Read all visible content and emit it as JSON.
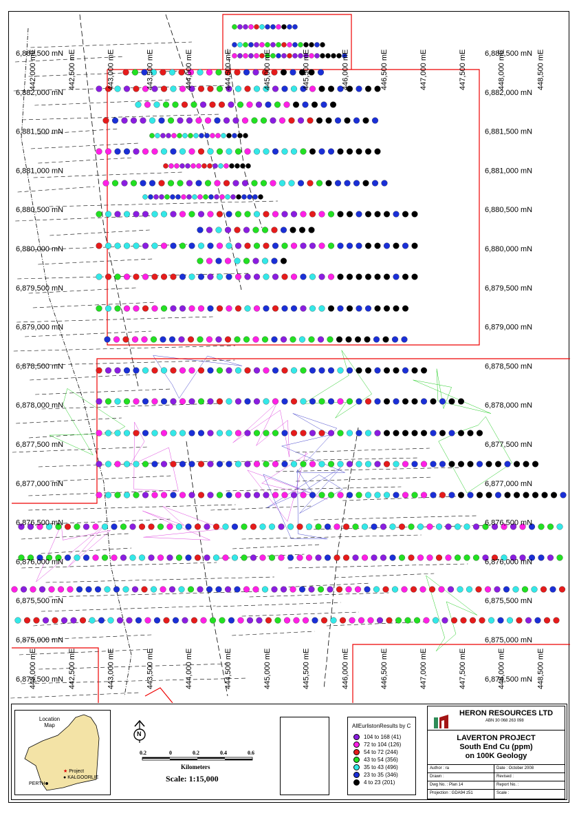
{
  "map": {
    "easting_labels_top": [
      "442,000 mE",
      "442,500 mE",
      "443,000 mE",
      "443,500 mE",
      "444,000 mE",
      "444,500 mE",
      "445,000 mE",
      "445,500 mE",
      "446,000 mE",
      "446,500 mE",
      "447,000 mE",
      "447,500 mE",
      "448,000 mE",
      "448,500 mE"
    ],
    "easting_labels_bottom": [
      "442,000 mE",
      "442,500 mE",
      "443,000 mE",
      "443,500 mE",
      "444,000 mE",
      "444,500 mE",
      "445,000 mE",
      "445,500 mE",
      "446,000 mE",
      "446,500 mE",
      "447,000 mE",
      "447,500 mE",
      "448,000 mE",
      "448,500 mE"
    ],
    "northing_labels_left": [
      "6,882,500 mN",
      "6,882,000 mN",
      "6,881,500 mN",
      "6,881,000 mN",
      "6,880,500 mN",
      "6,880,000 mN",
      "6,879,500 mN",
      "6,879,000 mN",
      "6,878,500 mN",
      "6,878,000 mN",
      "6,877,500 mN",
      "6,877,000 mN",
      "6,876,500 mN",
      "6,876,000 mN",
      "6,875,500 mN",
      "6,875,000 mN",
      "6,874,500 mN"
    ],
    "northing_labels_right": [
      "6,882,500 mN",
      "6,882,000 mN",
      "6,881,500 mN",
      "6,881,000 mN",
      "6,880,500 mN",
      "6,880,000 mN",
      "6,879,500 mN",
      "6,879,000 mN",
      "6,878,500 mN",
      "6,878,000 mN",
      "6,877,500 mN",
      "6,877,000 mN",
      "6,876,500 mN",
      "6,876,000 mN",
      "6,875,500 mN",
      "6,875,000 mN",
      "6,874,500 mN"
    ],
    "class_colors": [
      "#8a1de0",
      "#ff1fe6",
      "#e51b1b",
      "#22e022",
      "#33e8e8",
      "#1a2fd6",
      "#000000"
    ]
  },
  "location_map": {
    "title_line1": "Location",
    "title_line2": "Map",
    "project_label": "Project",
    "kalgoorlie_label": "KALGOORLIE",
    "perth_label": "PERTH"
  },
  "scale": {
    "north_label": "N",
    "ticks": [
      "0.2",
      "0",
      "0.2",
      "0.4",
      "0.6"
    ],
    "unit_label": "Kilometers",
    "ratio_label": "Scale: 1:15,000"
  },
  "legend": {
    "title": "AllEurlistonResults by C",
    "items": [
      {
        "label": "104 to 168   (41)",
        "color": "#8a1de0"
      },
      {
        "label": "72 to 104  (126)",
        "color": "#ff1fe6"
      },
      {
        "label": "54 to  72  (244)",
        "color": "#e51b1b"
      },
      {
        "label": "43 to  54  (356)",
        "color": "#22e022"
      },
      {
        "label": "35 to  43  (496)",
        "color": "#33e8e8"
      },
      {
        "label": "23 to  35  (346)",
        "color": "#1a2fd6"
      },
      {
        "label": "4 to  23  (201)",
        "color": "#000000"
      }
    ]
  },
  "title_block": {
    "company": "HERON RESOURCES LTD",
    "abn": "ABN 30 068 263 098",
    "project": "LAVERTON PROJECT",
    "subtitle1": "South End Cu (ppm)",
    "subtitle2": "on 100K Geology",
    "author": "Author : ra",
    "date": "Date : October 2008",
    "drawn": "Drawn :",
    "revised": "Revised :",
    "dwg_no": "Dwg No. : Plan 14",
    "report_no": "Report No. :",
    "projection": "Projection : GDA94 z51",
    "scale": "Scale :"
  }
}
